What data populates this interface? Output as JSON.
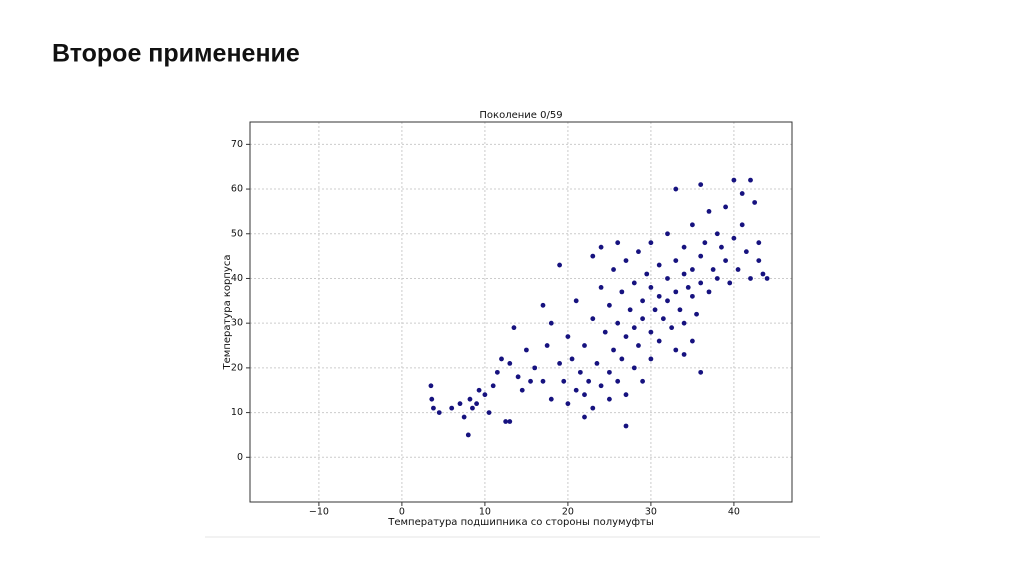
{
  "header": {
    "title": "Второе применение"
  },
  "chart_data": {
    "type": "scatter",
    "title": "Поколение 0/59",
    "x_label": "Температура подшипника со стороны полумуфты",
    "y_label": "Температура корпуса",
    "color": "#16127f",
    "grid": true,
    "xlim": [
      -18.3,
      47
    ],
    "ylim": [
      -10,
      75
    ],
    "xticks": [
      {
        "value": -10,
        "label": "−10"
      },
      0,
      10,
      20,
      30,
      40
    ],
    "yticks": [
      0,
      10,
      20,
      30,
      40,
      50,
      60,
      70
    ],
    "x": [
      3.5,
      3.6,
      3.8,
      4.5,
      6,
      7,
      7.5,
      8,
      8.2,
      8.5,
      9,
      9.3,
      10,
      10.5,
      11,
      11.5,
      12,
      12.5,
      13,
      13.5,
      14,
      14.5,
      15,
      15.5,
      16,
      17,
      17.5,
      18,
      18,
      19,
      19,
      19.5,
      20,
      20,
      20.5,
      21,
      21,
      21.5,
      22,
      22,
      22.5,
      23,
      23,
      23,
      23.5,
      24,
      24,
      24,
      24.5,
      25,
      25,
      25,
      25.5,
      25.5,
      26,
      26,
      26,
      26.5,
      26.5,
      27,
      27,
      27,
      27.5,
      28,
      28,
      28,
      28.5,
      28.5,
      29,
      29,
      29,
      29.5,
      30,
      30,
      30,
      30,
      30.5,
      31,
      31,
      31,
      31.5,
      32,
      32,
      32,
      32.5,
      33,
      33,
      33,
      33.5,
      34,
      34,
      34,
      34.5,
      35,
      35,
      35,
      35.5,
      36,
      36,
      36,
      36.5,
      37,
      37,
      37.5,
      38,
      38,
      38.5,
      39,
      39,
      39.5,
      40,
      40,
      40.5,
      41,
      41,
      41.5,
      42,
      42,
      42.5,
      43,
      43,
      43.5,
      44,
      33,
      36,
      34,
      17,
      13,
      27,
      22,
      35
    ],
    "y": [
      16,
      13,
      11,
      10,
      11,
      12,
      9,
      5,
      13,
      11,
      12,
      15,
      14,
      10,
      16,
      19,
      22,
      8,
      21,
      29,
      18,
      15,
      24,
      17,
      20,
      17,
      25,
      30,
      13,
      43,
      21,
      17,
      27,
      12,
      22,
      15,
      35,
      19,
      25,
      14,
      17,
      11,
      31,
      45,
      21,
      16,
      38,
      47,
      28,
      13,
      19,
      34,
      24,
      42,
      17,
      30,
      48,
      22,
      37,
      27,
      44,
      14,
      33,
      20,
      39,
      29,
      46,
      25,
      35,
      31,
      17,
      41,
      28,
      38,
      48,
      22,
      33,
      36,
      43,
      26,
      31,
      40,
      35,
      50,
      29,
      37,
      44,
      24,
      33,
      41,
      47,
      30,
      38,
      36,
      52,
      42,
      32,
      45,
      39,
      61,
      48,
      37,
      55,
      42,
      50,
      40,
      47,
      44,
      56,
      39,
      49,
      62,
      42,
      52,
      59,
      46,
      62,
      40,
      57,
      48,
      44,
      41,
      40,
      60,
      19,
      23,
      34,
      8,
      7,
      9,
      26
    ]
  }
}
